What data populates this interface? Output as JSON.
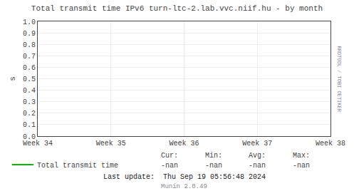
{
  "chart_data": {
    "type": "line",
    "title": "Total transmit time IPv6 turn-ltc-2.lab.vvc.niif.hu - by month",
    "y_label": "s",
    "categories": [
      "Week 34",
      "Week 35",
      "Week 36",
      "Week 37",
      "Week 38"
    ],
    "series": [
      {
        "name": "Total transmit time",
        "color": "#00bb00",
        "values": [
          null,
          null,
          null,
          null,
          null
        ]
      }
    ],
    "ylim": [
      0.0,
      1.0
    ],
    "yticks": [
      {
        "value": 0.0,
        "label": "0.0"
      },
      0.1,
      0.2,
      0.3,
      0.4,
      0.5,
      0.6,
      0.7,
      0.8,
      0.9,
      {
        "value": 1.0,
        "label": "1.0"
      }
    ],
    "grid": true,
    "legend": "bottom left",
    "stats": [
      {
        "label": "Cur:",
        "text": "-nan"
      },
      {
        "label": "Min:",
        "text": "-nan"
      },
      {
        "label": "Avg:",
        "text": "-nan"
      },
      {
        "label": "Max:",
        "text": "-nan"
      }
    ],
    "footer": [
      "Last update:  Thu Sep 19 05:56:48 2024",
      "Munin 2.0.49"
    ],
    "watermark": "RRDTOOL / TOBI OETIKER"
  }
}
